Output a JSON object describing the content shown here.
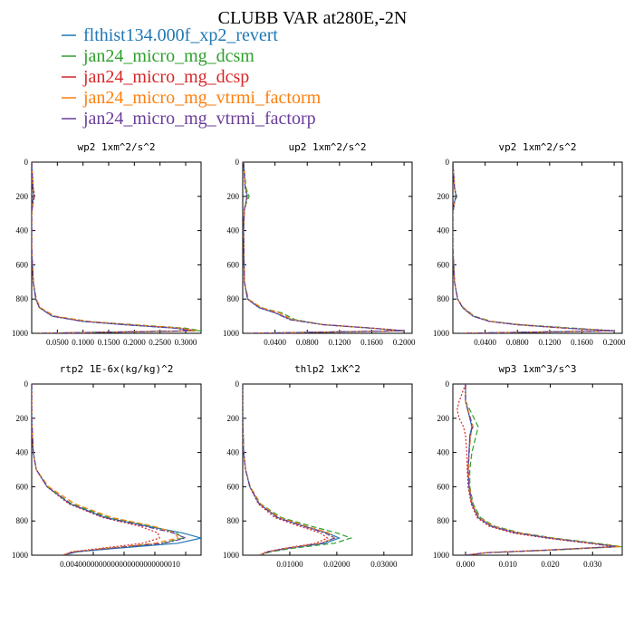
{
  "figure": {
    "title": "CLUBB VAR at280E,-2N"
  },
  "legend": [
    {
      "label": "flthist134.000f_xp2_revert",
      "color": "#1f77b4",
      "dash": "solid"
    },
    {
      "label": "jan24_micro_mg_dcsm",
      "color": "#2ca02c",
      "dash": "dashed"
    },
    {
      "label": "jan24_micro_mg_dcsp",
      "color": "#d62728",
      "dash": "dotted"
    },
    {
      "label": "jan24_micro_mg_vtrmi_factorm",
      "color": "#ff7f0e",
      "dash": "dashed"
    },
    {
      "label": "jan24_micro_mg_vtrmi_factorp",
      "color": "#6a3d9a",
      "dash": "dashdot"
    }
  ],
  "chart_data": [
    {
      "type": "line",
      "title": "wp2  1xm^2/s^2",
      "xlim": [
        0,
        0.33
      ],
      "ylim": [
        1000,
        0
      ],
      "xtick_labels": [
        "0.0500",
        "0.1000",
        "0.1500",
        "0.2000",
        "0.2500",
        "0.3000"
      ],
      "xtick_values": [
        0.05,
        0.1,
        0.15,
        0.2,
        0.25,
        0.3
      ],
      "ytick_labels": [
        "0",
        "200",
        "400",
        "600",
        "800",
        "1000"
      ],
      "ytick_values": [
        0,
        200,
        400,
        600,
        800,
        1000
      ],
      "y": [
        0,
        150,
        200,
        230,
        300,
        500,
        700,
        800,
        850,
        900,
        930,
        950,
        970,
        985,
        1000
      ],
      "series": [
        {
          "values": [
            0.0,
            0.002,
            0.004,
            0.002,
            0.0,
            0.0,
            0.003,
            0.008,
            0.015,
            0.04,
            0.1,
            0.18,
            0.28,
            0.32,
            0.01
          ]
        },
        {
          "values": [
            0.0,
            0.003,
            0.005,
            0.003,
            0.0,
            0.0,
            0.003,
            0.009,
            0.016,
            0.045,
            0.11,
            0.2,
            0.3,
            0.33,
            0.01
          ]
        },
        {
          "values": [
            0.0,
            0.003,
            0.006,
            0.003,
            0.0,
            0.0,
            0.003,
            0.008,
            0.015,
            0.04,
            0.1,
            0.19,
            0.29,
            0.32,
            0.01
          ]
        },
        {
          "values": [
            0.0,
            0.002,
            0.004,
            0.002,
            0.0,
            0.0,
            0.003,
            0.009,
            0.017,
            0.045,
            0.11,
            0.19,
            0.29,
            0.32,
            0.01
          ]
        },
        {
          "values": [
            0.0,
            0.002,
            0.004,
            0.002,
            0.0,
            0.0,
            0.003,
            0.008,
            0.015,
            0.04,
            0.1,
            0.18,
            0.28,
            0.31,
            0.01
          ]
        }
      ]
    },
    {
      "type": "line",
      "title": "up2  1xm^2/s^2",
      "xlim": [
        0,
        0.21
      ],
      "ylim": [
        1000,
        0
      ],
      "xtick_labels": [
        "0.0400",
        "0.0800",
        "0.1200",
        "0.1600",
        "0.2000"
      ],
      "xtick_values": [
        0.04,
        0.08,
        0.12,
        0.16,
        0.2
      ],
      "ytick_labels": [
        "0",
        "200",
        "400",
        "600",
        "800",
        "1000"
      ],
      "ytick_values": [
        0,
        200,
        400,
        600,
        800,
        1000
      ],
      "y": [
        0,
        150,
        200,
        230,
        280,
        400,
        700,
        800,
        850,
        880,
        920,
        950,
        970,
        985,
        1000
      ],
      "series": [
        {
          "values": [
            0.001,
            0.003,
            0.006,
            0.004,
            0.002,
            0.001,
            0.002,
            0.006,
            0.02,
            0.04,
            0.06,
            0.1,
            0.16,
            0.2,
            0.01
          ]
        },
        {
          "values": [
            0.001,
            0.004,
            0.008,
            0.005,
            0.002,
            0.001,
            0.002,
            0.007,
            0.022,
            0.048,
            0.065,
            0.1,
            0.16,
            0.2,
            0.01
          ]
        },
        {
          "values": [
            0.001,
            0.003,
            0.006,
            0.004,
            0.002,
            0.001,
            0.002,
            0.006,
            0.02,
            0.04,
            0.06,
            0.1,
            0.16,
            0.2,
            0.01
          ]
        },
        {
          "values": [
            0.001,
            0.003,
            0.006,
            0.004,
            0.002,
            0.001,
            0.002,
            0.007,
            0.023,
            0.045,
            0.062,
            0.1,
            0.16,
            0.2,
            0.01
          ]
        },
        {
          "values": [
            0.001,
            0.003,
            0.005,
            0.004,
            0.002,
            0.001,
            0.002,
            0.006,
            0.02,
            0.04,
            0.058,
            0.1,
            0.16,
            0.2,
            0.01
          ]
        }
      ]
    },
    {
      "type": "line",
      "title": "vp2  1xm^2/s^2",
      "xlim": [
        0,
        0.21
      ],
      "ylim": [
        1000,
        0
      ],
      "xtick_labels": [
        "0.0400",
        "0.0800",
        "0.1200",
        "0.1600",
        "0.2000"
      ],
      "xtick_values": [
        0.04,
        0.08,
        0.12,
        0.16,
        0.2
      ],
      "ytick_labels": [
        "0",
        "200",
        "400",
        "600",
        "800",
        "1000"
      ],
      "ytick_values": [
        0,
        200,
        400,
        600,
        800,
        1000
      ],
      "y": [
        0,
        150,
        200,
        230,
        300,
        500,
        700,
        800,
        850,
        900,
        930,
        950,
        970,
        985,
        1000
      ],
      "series": [
        {
          "values": [
            0.0,
            0.002,
            0.004,
            0.002,
            0.0,
            0.0,
            0.002,
            0.006,
            0.012,
            0.025,
            0.045,
            0.08,
            0.14,
            0.2,
            0.01
          ]
        },
        {
          "values": [
            0.0,
            0.002,
            0.005,
            0.002,
            0.0,
            0.0,
            0.002,
            0.006,
            0.013,
            0.027,
            0.048,
            0.085,
            0.15,
            0.2,
            0.01
          ]
        },
        {
          "values": [
            0.0,
            0.002,
            0.004,
            0.002,
            0.0,
            0.0,
            0.002,
            0.006,
            0.012,
            0.025,
            0.045,
            0.08,
            0.14,
            0.2,
            0.01
          ]
        },
        {
          "values": [
            0.0,
            0.002,
            0.004,
            0.002,
            0.0,
            0.0,
            0.002,
            0.006,
            0.013,
            0.026,
            0.046,
            0.082,
            0.14,
            0.2,
            0.01
          ]
        },
        {
          "values": [
            0.0,
            0.002,
            0.004,
            0.002,
            0.0,
            0.0,
            0.002,
            0.006,
            0.012,
            0.025,
            0.045,
            0.08,
            0.14,
            0.2,
            0.01
          ]
        }
      ]
    },
    {
      "type": "line",
      "title": "rtp2  1E-6x(kg/kg)^2",
      "xlim": [
        0,
        1.1e-05
      ],
      "ylim": [
        1000,
        0
      ],
      "xtick_labels": [
        "0.000004",
        "0.000006",
        "0.000008",
        "0.000010"
      ],
      "xtick_values": [
        4e-06,
        6e-06,
        8e-06,
        1e-05
      ],
      "xtick_label_text": "0.0040000000000000000000000010",
      "ytick_labels": [
        "0",
        "200",
        "400",
        "600",
        "800",
        "1000"
      ],
      "ytick_values": [
        0,
        200,
        400,
        600,
        800,
        1000
      ],
      "y": [
        0,
        200,
        400,
        500,
        600,
        700,
        780,
        830,
        870,
        900,
        930,
        960,
        980,
        1000
      ],
      "series": [
        {
          "values": [
            0.0,
            0.0,
            1e-07,
            3e-07,
            1e-06,
            2.5e-06,
            4.8e-06,
            7.5e-06,
            9.8e-06,
            1.1e-05,
            9.5e-06,
            5.5e-06,
            3e-06,
            2e-06
          ]
        },
        {
          "values": [
            0.0,
            0.0,
            1e-07,
            3e-07,
            1e-06,
            2.6e-06,
            5e-06,
            7.8e-06,
            9.4e-06,
            9.8e-06,
            8.5e-06,
            5e-06,
            2.8e-06,
            2e-06
          ]
        },
        {
          "values": [
            0.0,
            0.0,
            1e-07,
            3e-07,
            1e-06,
            2.4e-06,
            4.6e-06,
            7e-06,
            8.2e-06,
            8.3e-06,
            7.2e-06,
            4.5e-06,
            2.6e-06,
            2e-06
          ]
        },
        {
          "values": [
            0.0,
            0.0,
            1e-07,
            3e-07,
            1.1e-06,
            2.8e-06,
            5.2e-06,
            7.9e-06,
            9.3e-06,
            9.5e-06,
            8e-06,
            4.8e-06,
            2.7e-06,
            2e-06
          ]
        },
        {
          "values": [
            0.0,
            0.0,
            1e-07,
            3e-07,
            1e-06,
            2.5e-06,
            4.7e-06,
            7.3e-06,
            9.2e-06,
            1e-05,
            8.6e-06,
            5.1e-06,
            2.8e-06,
            2e-06
          ]
        }
      ]
    },
    {
      "type": "line",
      "title": "thlp2  1xK^2",
      "xlim": [
        0,
        0.036
      ],
      "ylim": [
        1000,
        0
      ],
      "xtick_labels": [
        "0.01000",
        "0.02000",
        "0.03000"
      ],
      "xtick_values": [
        0.01,
        0.02,
        0.03
      ],
      "ytick_labels": [
        "0",
        "200",
        "400",
        "600",
        "800",
        "1000"
      ],
      "ytick_values": [
        0,
        200,
        400,
        600,
        800,
        1000
      ],
      "y": [
        0,
        200,
        400,
        500,
        600,
        700,
        780,
        830,
        870,
        900,
        930,
        960,
        980,
        1000
      ],
      "series": [
        {
          "values": [
            0.0,
            0.0,
            0.0002,
            0.0006,
            0.0015,
            0.0035,
            0.0075,
            0.013,
            0.018,
            0.0205,
            0.0175,
            0.0095,
            0.0055,
            0.0035
          ]
        },
        {
          "values": [
            0.0,
            0.0,
            0.0002,
            0.0006,
            0.0016,
            0.0038,
            0.0082,
            0.0145,
            0.02,
            0.023,
            0.0195,
            0.0105,
            0.006,
            0.0035
          ]
        },
        {
          "values": [
            0.0,
            0.0,
            0.0002,
            0.0006,
            0.0015,
            0.0033,
            0.0068,
            0.012,
            0.0165,
            0.018,
            0.0155,
            0.0088,
            0.005,
            0.0035
          ]
        },
        {
          "values": [
            0.0,
            0.0,
            0.0002,
            0.0006,
            0.0016,
            0.0037,
            0.0078,
            0.0135,
            0.0183,
            0.0195,
            0.0165,
            0.0092,
            0.0053,
            0.0035
          ]
        },
        {
          "values": [
            0.0,
            0.0,
            0.0002,
            0.0006,
            0.0015,
            0.0035,
            0.0073,
            0.0128,
            0.0175,
            0.0195,
            0.0168,
            0.0094,
            0.0054,
            0.0035
          ]
        }
      ]
    },
    {
      "type": "line",
      "title": "wp3  1xm^3/s^3",
      "xlim": [
        -0.003,
        0.037
      ],
      "ylim": [
        1000,
        0
      ],
      "xtick_labels": [
        "0.000",
        "0.010",
        "0.020",
        "0.030"
      ],
      "xtick_values": [
        0.0,
        0.01,
        0.02,
        0.03
      ],
      "ytick_labels": [
        "0",
        "200",
        "400",
        "600",
        "800",
        "1000"
      ],
      "ytick_values": [
        0,
        200,
        400,
        600,
        800,
        1000
      ],
      "y": [
        0,
        100,
        150,
        200,
        250,
        300,
        400,
        500,
        600,
        700,
        780,
        830,
        870,
        900,
        930,
        950,
        970,
        985,
        1000
      ],
      "series": [
        {
          "values": [
            0.0,
            0.0,
            0.0005,
            0.001,
            0.0015,
            0.001,
            0.0008,
            0.0006,
            0.0008,
            0.0015,
            0.003,
            0.006,
            0.012,
            0.02,
            0.03,
            0.036,
            0.02,
            0.005,
            0.0
          ]
        },
        {
          "values": [
            0.0,
            0.0,
            0.001,
            0.002,
            0.003,
            0.0025,
            0.0015,
            0.001,
            0.001,
            0.0018,
            0.0035,
            0.0068,
            0.013,
            0.021,
            0.031,
            0.037,
            0.021,
            0.005,
            0.0
          ]
        },
        {
          "values": [
            0.0,
            -0.0015,
            -0.002,
            -0.0015,
            -0.0005,
            0.0,
            0.0003,
            0.0004,
            0.0006,
            0.0013,
            0.0027,
            0.0055,
            0.011,
            0.019,
            0.029,
            0.035,
            0.019,
            0.005,
            0.0
          ]
        },
        {
          "values": [
            0.0,
            0.0,
            0.0006,
            0.0012,
            0.0018,
            0.0012,
            0.0009,
            0.0007,
            0.0009,
            0.0016,
            0.0032,
            0.0065,
            0.0125,
            0.0205,
            0.03,
            0.0365,
            0.02,
            0.005,
            0.0
          ]
        },
        {
          "values": [
            0.0,
            0.0,
            0.0005,
            0.0011,
            0.0016,
            0.0011,
            0.0008,
            0.0006,
            0.0008,
            0.0015,
            0.003,
            0.006,
            0.012,
            0.02,
            0.0295,
            0.0355,
            0.0195,
            0.005,
            0.0
          ]
        }
      ]
    }
  ]
}
